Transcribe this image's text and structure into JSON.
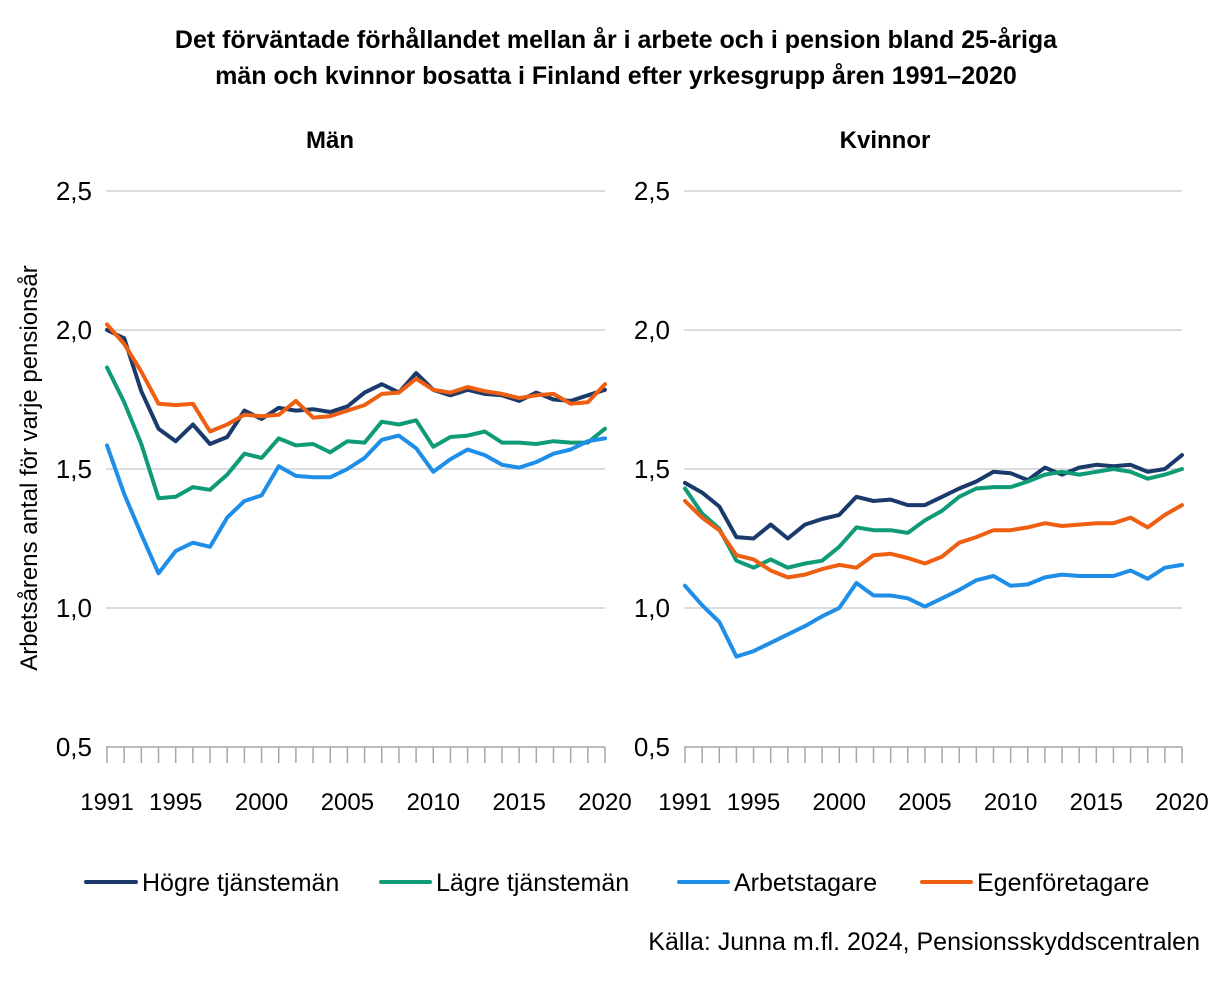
{
  "title": {
    "line1": "Det förväntade förhållandet mellan år i arbete och i pension bland 25-åriga",
    "line2": "män och kvinnor bosatta i Finland efter yrkesgrupp åren 1991–2020"
  },
  "ylabel": "Arbetsårens antal för varje pensionsår",
  "source": "Källa: Junna m.fl. 2024, Pensionsskyddscentralen",
  "colors": {
    "hogre": "#1a3a6b",
    "lagre": "#0f9b76",
    "arbetstagare": "#1e8ee8",
    "egen": "#ee5f12",
    "grid": "#c8c8c8",
    "axis": "#a6a6a6"
  },
  "legend": [
    {
      "label": "Högre tjänstemän",
      "color": "#1a3a6b"
    },
    {
      "label": "Lägre tjänstemän",
      "color": "#0f9b76"
    },
    {
      "label": "Arbetstagare",
      "color": "#1e8ee8"
    },
    {
      "label": "Egenföretagare",
      "color": "#ee5f12"
    }
  ],
  "chart_data": [
    {
      "type": "line",
      "title": "Män",
      "ylim": [
        0.5,
        2.5
      ],
      "yticks": [
        "0,5",
        "1,0",
        "1,5",
        "2,0",
        "2,5"
      ],
      "ytick_values": [
        0.5,
        1.0,
        1.5,
        2.0,
        2.5
      ],
      "xticks": [
        "1991",
        "1995",
        "2000",
        "2005",
        "2010",
        "2015",
        "2020"
      ],
      "xtick_values": [
        1991,
        1995,
        2000,
        2005,
        2010,
        2015,
        2020
      ],
      "grid": true,
      "x": [
        1991,
        1992,
        1993,
        1994,
        1995,
        1996,
        1997,
        1998,
        1999,
        2000,
        2001,
        2002,
        2003,
        2004,
        2005,
        2006,
        2007,
        2008,
        2009,
        2010,
        2011,
        2012,
        2013,
        2014,
        2015,
        2016,
        2017,
        2018,
        2019,
        2020
      ],
      "series": [
        {
          "name": "Högre tjänstemän",
          "color": "#1a3a6b",
          "values": [
            2.0,
            1.97,
            1.78,
            1.645,
            1.6,
            1.66,
            1.59,
            1.615,
            1.71,
            1.68,
            1.72,
            1.71,
            1.715,
            1.705,
            1.725,
            1.775,
            1.805,
            1.775,
            1.845,
            1.785,
            1.765,
            1.785,
            1.77,
            1.765,
            1.745,
            1.775,
            1.75,
            1.745,
            1.765,
            1.785
          ]
        },
        {
          "name": "Lägre tjänstemän",
          "color": "#0f9b76",
          "values": [
            1.865,
            1.74,
            1.59,
            1.395,
            1.4,
            1.435,
            1.425,
            1.48,
            1.555,
            1.54,
            1.61,
            1.585,
            1.59,
            1.56,
            1.6,
            1.595,
            1.67,
            1.66,
            1.675,
            1.58,
            1.615,
            1.62,
            1.635,
            1.595,
            1.595,
            1.59,
            1.6,
            1.595,
            1.595,
            1.645
          ]
        },
        {
          "name": "Arbetstagare",
          "color": "#1e8ee8",
          "values": [
            1.585,
            1.41,
            1.265,
            1.125,
            1.205,
            1.235,
            1.22,
            1.325,
            1.385,
            1.405,
            1.51,
            1.475,
            1.47,
            1.47,
            1.5,
            1.54,
            1.605,
            1.62,
            1.575,
            1.49,
            1.535,
            1.57,
            1.55,
            1.515,
            1.505,
            1.525,
            1.555,
            1.57,
            1.6,
            1.61
          ]
        },
        {
          "name": "Egenföretagare",
          "color": "#ee5f12",
          "values": [
            2.02,
            1.95,
            1.85,
            1.735,
            1.73,
            1.735,
            1.635,
            1.66,
            1.695,
            1.69,
            1.695,
            1.745,
            1.685,
            1.69,
            1.71,
            1.73,
            1.77,
            1.775,
            1.825,
            1.785,
            1.775,
            1.795,
            1.78,
            1.77,
            1.755,
            1.765,
            1.77,
            1.735,
            1.74,
            1.805
          ]
        }
      ]
    },
    {
      "type": "line",
      "title": "Kvinnor",
      "ylim": [
        0.5,
        2.5
      ],
      "yticks": [
        "0,5",
        "1,0",
        "1,5",
        "2,0",
        "2,5"
      ],
      "ytick_values": [
        0.5,
        1.0,
        1.5,
        2.0,
        2.5
      ],
      "xticks": [
        "1991",
        "1995",
        "2000",
        "2005",
        "2010",
        "2015",
        "2020"
      ],
      "xtick_values": [
        1991,
        1995,
        2000,
        2005,
        2010,
        2015,
        2020
      ],
      "grid": true,
      "x": [
        1991,
        1992,
        1993,
        1994,
        1995,
        1996,
        1997,
        1998,
        1999,
        2000,
        2001,
        2002,
        2003,
        2004,
        2005,
        2006,
        2007,
        2008,
        2009,
        2010,
        2011,
        2012,
        2013,
        2014,
        2015,
        2016,
        2017,
        2018,
        2019,
        2020
      ],
      "series": [
        {
          "name": "Högre tjänstemän",
          "color": "#1a3a6b",
          "values": [
            1.45,
            1.415,
            1.365,
            1.255,
            1.25,
            1.3,
            1.25,
            1.3,
            1.32,
            1.335,
            1.4,
            1.385,
            1.39,
            1.37,
            1.37,
            1.4,
            1.43,
            1.455,
            1.49,
            1.485,
            1.46,
            1.505,
            1.48,
            1.505,
            1.515,
            1.51,
            1.515,
            1.49,
            1.5,
            1.55
          ]
        },
        {
          "name": "Lägre tjänstemän",
          "color": "#0f9b76",
          "values": [
            1.43,
            1.34,
            1.285,
            1.17,
            1.145,
            1.175,
            1.145,
            1.16,
            1.17,
            1.22,
            1.29,
            1.28,
            1.28,
            1.27,
            1.315,
            1.35,
            1.4,
            1.43,
            1.435,
            1.435,
            1.455,
            1.48,
            1.49,
            1.48,
            1.49,
            1.5,
            1.49,
            1.465,
            1.48,
            1.5
          ]
        },
        {
          "name": "Arbetstagare",
          "color": "#1e8ee8",
          "values": [
            1.08,
            1.01,
            0.95,
            0.825,
            0.845,
            0.875,
            0.905,
            0.935,
            0.97,
            1.0,
            1.09,
            1.045,
            1.045,
            1.035,
            1.005,
            1.035,
            1.065,
            1.1,
            1.115,
            1.08,
            1.085,
            1.11,
            1.12,
            1.115,
            1.115,
            1.115,
            1.135,
            1.105,
            1.145,
            1.155
          ]
        },
        {
          "name": "Egenföretagare",
          "color": "#ee5f12",
          "values": [
            1.385,
            1.325,
            1.28,
            1.19,
            1.175,
            1.135,
            1.11,
            1.12,
            1.14,
            1.155,
            1.145,
            1.19,
            1.195,
            1.18,
            1.16,
            1.185,
            1.235,
            1.255,
            1.28,
            1.28,
            1.29,
            1.305,
            1.295,
            1.3,
            1.305,
            1.305,
            1.325,
            1.29,
            1.335,
            1.37
          ]
        }
      ]
    }
  ]
}
